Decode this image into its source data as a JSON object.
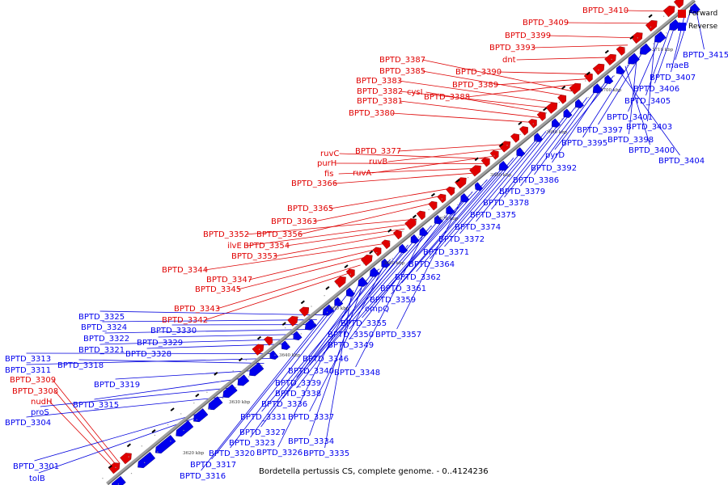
{
  "caption": "Bordetella pertussis CS, complete genome. - 0..4124236",
  "legend": [
    {
      "label": "Forward",
      "color": "#e00000"
    },
    {
      "label": "Reverse",
      "color": "#0000ee"
    }
  ],
  "colors": {
    "forward": "#e00000",
    "reverse": "#0000ee",
    "axis": "#a0a0a0",
    "lead_forward": "#dd0000",
    "lead_reverse": "#0000dd"
  },
  "ticks": [
    "3620 kbp",
    "3630 kbp",
    "3640 kbp",
    "3650 kbp",
    "3660 kbp",
    "3670 kbp",
    "3680 kbp",
    "3690 kbp",
    "3700 kbp",
    "3710 kbp"
  ],
  "forward_labels": [
    "BPTD_3410",
    "BPTD_3409",
    "BPTD_3399",
    "BPTD_3393",
    "dnt",
    "BPTD_3390",
    "BPTD_3389",
    "BPTD_3388",
    "BPTD_3387",
    "BPTD_3385",
    "BPTD_3383",
    "BPTD_3382",
    "cysI",
    "BPTD_3381",
    "BPTD_3380",
    "BPTD_3377",
    "ruvB",
    "ruvA",
    "ruvC",
    "purH",
    "fis",
    "BPTD_3366",
    "BPTD_3365",
    "BPTD_3363",
    "BPTD_3356",
    "BPTD_3352",
    "ilvE",
    "BPTD_3354",
    "BPTD_3353",
    "BPTD_3344",
    "BPTD_3347",
    "BPTD_3345",
    "BPTD_3343",
    "BPTD_3342",
    "BPTD_3309",
    "BPTD_3308",
    "nudH"
  ],
  "reverse_labels": [
    "BPTD_3415",
    "maeB",
    "BPTD_3407",
    "BPTD_3406",
    "BPTD_3405",
    "BPTD_3401",
    "BPTD_3403",
    "BPTD_3397",
    "BPTD_3398",
    "BPTD_3395",
    "BPTD_3400",
    "BPTD_3404",
    "pyrD",
    "BPTD_3392",
    "BPTD_3386",
    "BPTD_3379",
    "BPTD_3378",
    "BPTD_3375",
    "BPTD_3374",
    "BPTD_3372",
    "BPTD_3371",
    "BPTD_3364",
    "BPTD_3362",
    "BPTD_3361",
    "BPTD_3359",
    "ompQ",
    "BPTD_3355",
    "BPTD_3350",
    "BPTD_3357",
    "BPTD_3349",
    "BPTD_3346",
    "BPTD_3340",
    "BPTD_3348",
    "BPTD_3339",
    "BPTD_3338",
    "BPTD_3336",
    "BPTD_3331",
    "BPTD_3337",
    "BPTD_3327",
    "BPTD_3323",
    "BPTD_3334",
    "BPTD_3326",
    "BPTD_3335",
    "BPTD_3320",
    "BPTD_3317",
    "BPTD_3316",
    "BPTD_3325",
    "BPTD_3324",
    "BPTD_3330",
    "BPTD_3322",
    "BPTD_3329",
    "BPTD_3321",
    "BPTD_3328",
    "BPTD_3313",
    "BPTD_3311",
    "BPTD_3318",
    "BPTD_3319",
    "BPTD_3315",
    "proS",
    "BPTD_3304",
    "BPTD_3301",
    "tolB"
  ]
}
